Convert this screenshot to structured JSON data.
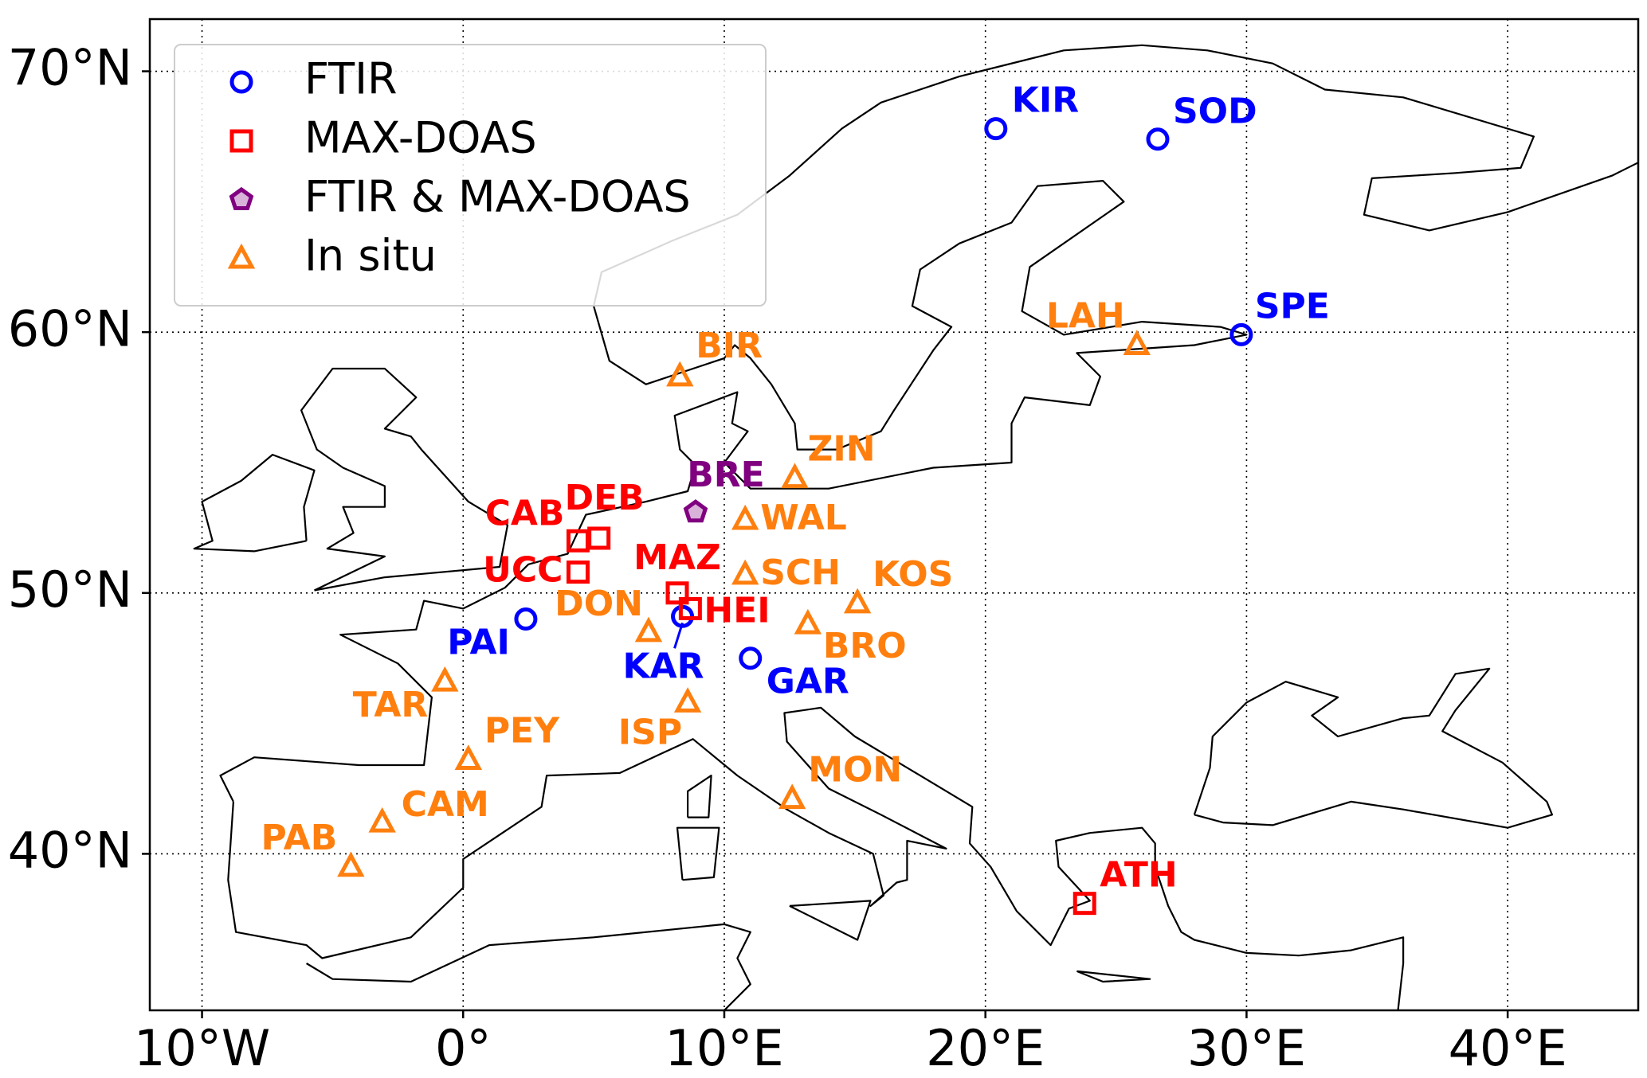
{
  "chart_data": {
    "type": "map",
    "xlim": [
      -12,
      45
    ],
    "ylim": [
      34,
      72
    ],
    "xticks": [
      {
        "value": -10,
        "label": "10°W"
      },
      {
        "value": 0,
        "label": "0°"
      },
      {
        "value": 10,
        "label": "10°E"
      },
      {
        "value": 20,
        "label": "20°E"
      },
      {
        "value": 30,
        "label": "30°E"
      },
      {
        "value": 40,
        "label": "40°E"
      }
    ],
    "yticks": [
      {
        "value": 40,
        "label": "40°N"
      },
      {
        "value": 50,
        "label": "50°N"
      },
      {
        "value": 60,
        "label": "60°N"
      },
      {
        "value": 70,
        "label": "70°N"
      }
    ],
    "grid": true,
    "legend": "upper left",
    "series": [
      {
        "name": "FTIR",
        "color": "#0000ff",
        "marker": "circle",
        "stations": [
          {
            "label": "KIR",
            "lon": 20.4,
            "lat": 67.8
          },
          {
            "label": "SOD",
            "lon": 26.6,
            "lat": 67.4
          },
          {
            "label": "SPE",
            "lon": 29.8,
            "lat": 59.9
          },
          {
            "label": "PAI",
            "lon": 2.4,
            "lat": 49.0
          },
          {
            "label": "KAR",
            "lon": 8.4,
            "lat": 49.1
          },
          {
            "label": "GAR",
            "lon": 11.0,
            "lat": 47.5
          }
        ]
      },
      {
        "name": "MAX-DOAS",
        "color": "#ff0000",
        "marker": "square",
        "stations": [
          {
            "label": "CAB",
            "lon": 4.4,
            "lat": 52.0
          },
          {
            "label": "DEB",
            "lon": 5.2,
            "lat": 52.1
          },
          {
            "label": "UCC",
            "lon": 4.4,
            "lat": 50.8
          },
          {
            "label": "MAZ",
            "lon": 8.2,
            "lat": 50.0
          },
          {
            "label": "HEI",
            "lon": 8.7,
            "lat": 49.4
          },
          {
            "label": "ATH",
            "lon": 23.8,
            "lat": 38.1
          }
        ]
      },
      {
        "name": "FTIR & MAX-DOAS",
        "color": "#800080",
        "marker": "pentagon",
        "stations": [
          {
            "label": "BRE",
            "lon": 8.9,
            "lat": 53.1
          }
        ]
      },
      {
        "name": "In situ",
        "color": "#ff7f0e",
        "marker": "triangle",
        "stations": [
          {
            "label": "BIR",
            "lon": 8.3,
            "lat": 58.3
          },
          {
            "label": "ZIN",
            "lon": 12.7,
            "lat": 54.4
          },
          {
            "label": "WAL",
            "lon": 10.8,
            "lat": 52.8
          },
          {
            "label": "SCH",
            "lon": 10.8,
            "lat": 50.7
          },
          {
            "label": "KOS",
            "lon": 15.1,
            "lat": 49.6
          },
          {
            "label": "DON",
            "lon": 7.1,
            "lat": 48.5
          },
          {
            "label": "BRO",
            "lon": 13.2,
            "lat": 48.8
          },
          {
            "label": "TAR",
            "lon": -0.7,
            "lat": 46.6
          },
          {
            "label": "ISP",
            "lon": 8.6,
            "lat": 45.8
          },
          {
            "label": "PEY",
            "lon": 0.2,
            "lat": 43.6
          },
          {
            "label": "MON",
            "lon": 12.6,
            "lat": 42.1
          },
          {
            "label": "CAM",
            "lon": -3.1,
            "lat": 41.2
          },
          {
            "label": "PAB",
            "lon": -4.3,
            "lat": 39.5
          },
          {
            "label": "LAH",
            "lon": 25.8,
            "lat": 59.5
          }
        ]
      }
    ]
  }
}
